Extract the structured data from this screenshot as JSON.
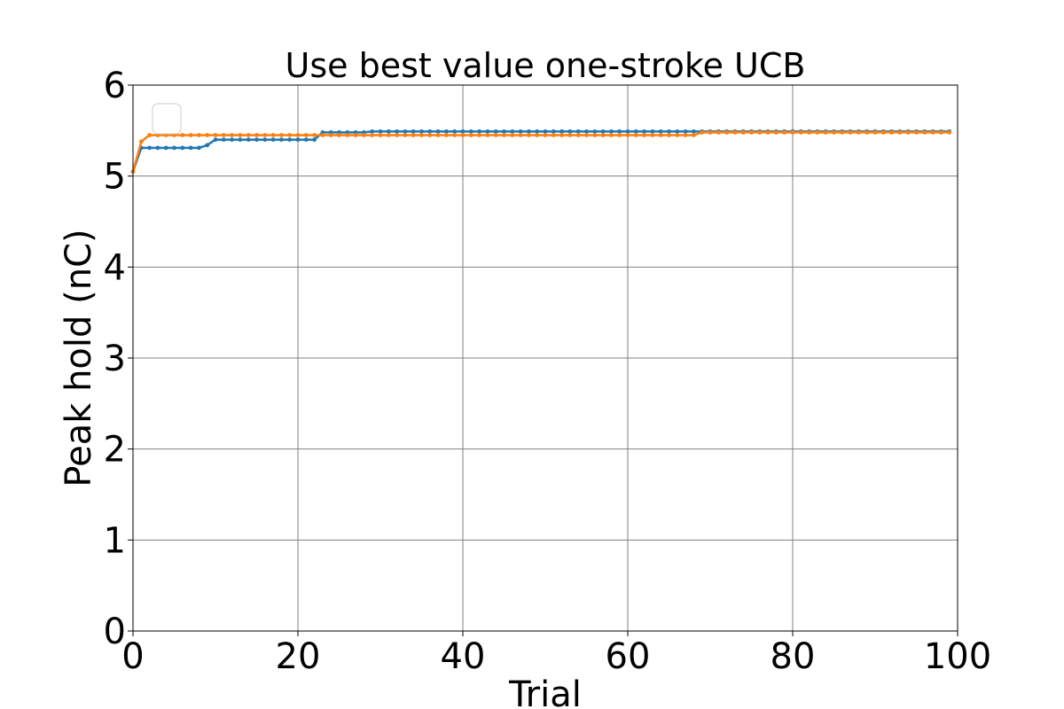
{
  "chart_data": {
    "type": "line",
    "title": "Use best value one-stroke UCB",
    "xlabel": "Trial",
    "ylabel": "Peak hold (nC)",
    "xlim": [
      0,
      100
    ],
    "ylim": [
      0,
      6
    ],
    "xticks": [
      0,
      20,
      40,
      60,
      80,
      100
    ],
    "yticks": [
      0,
      1,
      2,
      3,
      4,
      5,
      6
    ],
    "grid": true,
    "legend": "upper-left (empty)",
    "series": [
      {
        "color": "#1f77b4",
        "steps": [
          {
            "from": 0,
            "to": 0,
            "value": 5.05
          },
          {
            "from": 1,
            "to": 8,
            "value": 5.31
          },
          {
            "from": 9,
            "to": 9,
            "value": 5.34
          },
          {
            "from": 10,
            "to": 22,
            "value": 5.4
          },
          {
            "from": 23,
            "to": 28,
            "value": 5.48
          },
          {
            "from": 29,
            "to": 99,
            "value": 5.49
          }
        ]
      },
      {
        "color": "#ff7f0e",
        "steps": [
          {
            "from": 0,
            "to": 0,
            "value": 5.05
          },
          {
            "from": 1,
            "to": 1,
            "value": 5.38
          },
          {
            "from": 2,
            "to": 68,
            "value": 5.45
          },
          {
            "from": 69,
            "to": 99,
            "value": 5.48
          }
        ]
      }
    ]
  }
}
